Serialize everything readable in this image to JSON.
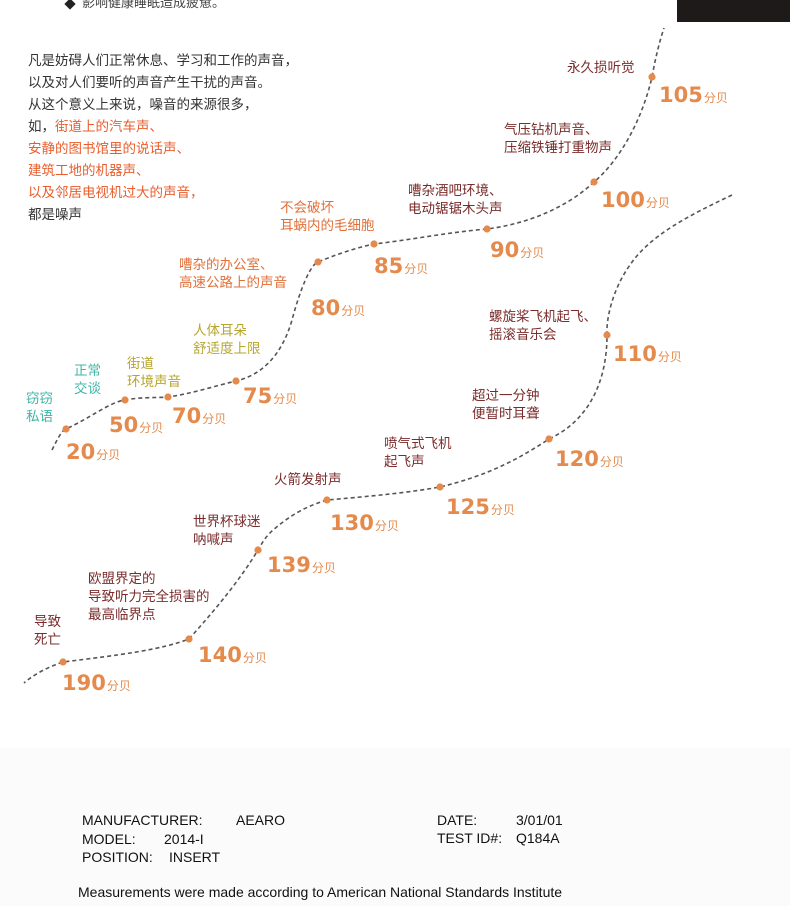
{
  "top_note": "影响健康睡眠造成疲惫。",
  "intro": {
    "lines": [
      "凡是妨碍人们正常休息、学习和工作的声音，",
      "以及对人们要听的声音产生干扰的声音。",
      "从这个意义上来说，噪音的来源很多，",
      "如，"
    ],
    "highlights": [
      "街道上的汽车声、",
      "安静的图书馆里的说话声、",
      "建筑工地的机器声、",
      "以及邻居电视机过大的声音，"
    ],
    "ending": "都是噪声"
  },
  "unit": "分贝",
  "scale1": [
    {
      "value": "20",
      "label": [
        "窃窃",
        "私语"
      ],
      "color": "#3fb5a8"
    },
    {
      "value": "50",
      "label": [
        "正常",
        "交谈"
      ],
      "color": "#3fb5a8"
    },
    {
      "value": "70",
      "label": [
        "街道",
        "环境声音"
      ],
      "color": "#b7a62f"
    },
    {
      "value": "75",
      "label": [
        "人体耳朵",
        "舒适度上限"
      ],
      "color": "#b7a62f"
    },
    {
      "value": "80",
      "label": [
        "嘈杂的办公室、",
        "高速公路上的声音"
      ],
      "color": "#e0703a"
    },
    {
      "value": "85",
      "label": [
        "不会破坏",
        "耳蜗内的毛细胞"
      ],
      "color": "#e0703a"
    },
    {
      "value": "90",
      "label": [
        "嘈杂酒吧环境、",
        "电动锯锯木头声"
      ],
      "color": "#7a2b2b"
    },
    {
      "value": "100",
      "label": [
        "气压钻机声音、",
        "压缩铁锤打重物声"
      ],
      "color": "#7a2b2b"
    },
    {
      "value": "105",
      "label": [
        "永久损听觉"
      ],
      "color": "#7a2b2b"
    }
  ],
  "scale2": [
    {
      "value": "110",
      "label": [
        "螺旋桨飞机起飞、",
        "摇滚音乐会"
      ],
      "color": "#7a2b2b"
    },
    {
      "value": "120",
      "label": [
        "超过一分钟",
        "便暂时耳聋"
      ],
      "color": "#7a2b2b"
    },
    {
      "value": "125",
      "label": [
        "喷气式飞机",
        "起飞声"
      ],
      "color": "#7a2b2b"
    },
    {
      "value": "130",
      "label": [
        "火箭发射声"
      ],
      "color": "#7a2b2b"
    },
    {
      "value": "139",
      "label": [
        "世界杯球迷",
        "呐喊声"
      ],
      "color": "#7a2b2b"
    },
    {
      "value": "140",
      "label": [
        "欧盟界定的",
        "导致听力完全损害的",
        "最高临界点"
      ],
      "color": "#7a2b2b"
    },
    {
      "value": "190",
      "label": [
        "导致",
        "死亡"
      ],
      "color": "#7a2b2b"
    }
  ],
  "spec": {
    "manufacturer_label": "MANUFACTURER:",
    "manufacturer": "AEARO",
    "model_label": "MODEL:",
    "model": "2014-I",
    "position_label": "POSITION:",
    "position": "INSERT",
    "date_label": "DATE:",
    "date": "3/01/01",
    "testid_label": "TEST ID#:",
    "testid": "Q184A",
    "measurements": "Measurements were made according to American National Standards Institute"
  },
  "colors": {
    "curve": "#555555",
    "dot": "#e48a4c",
    "value": "#e48a4c"
  }
}
